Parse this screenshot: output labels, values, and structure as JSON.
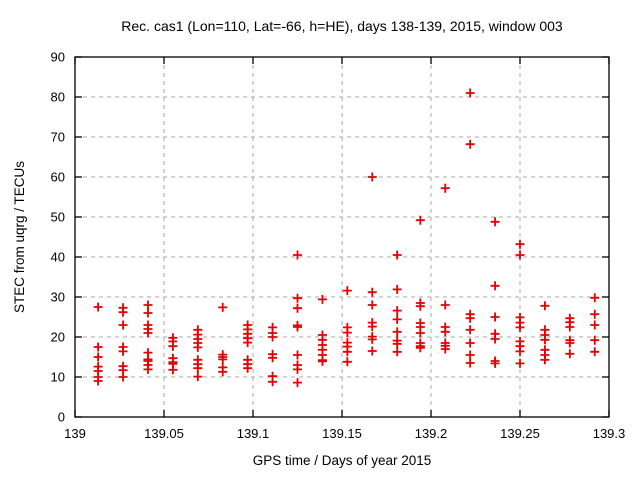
{
  "window": {
    "background_color": "#ffffff"
  },
  "chart_data": {
    "type": "scatter",
    "title": "Rec. cas1 (Lon=110, Lat=-66, h=HE), days 138-139, 2015, window 003",
    "xlabel": "GPS time / Days of year 2015",
    "ylabel": "STEC from uqrg / TECUs",
    "xlim": [
      139,
      139.3
    ],
    "ylim": [
      0,
      90
    ],
    "xticks": [
      {
        "v": 139,
        "label": "139"
      },
      {
        "v": 139.05,
        "label": "139.05"
      },
      {
        "v": 139.1,
        "label": "139.1"
      },
      {
        "v": 139.15,
        "label": "139.15"
      },
      {
        "v": 139.2,
        "label": "139.2"
      },
      {
        "v": 139.25,
        "label": "139.25"
      },
      {
        "v": 139.3,
        "label": "139.3"
      }
    ],
    "yticks": [
      {
        "v": 0,
        "label": "0"
      },
      {
        "v": 10,
        "label": "10"
      },
      {
        "v": 20,
        "label": "20"
      },
      {
        "v": 30,
        "label": "30"
      },
      {
        "v": 40,
        "label": "40"
      },
      {
        "v": 50,
        "label": "50"
      },
      {
        "v": 60,
        "label": "60"
      },
      {
        "v": 70,
        "label": "70"
      },
      {
        "v": 80,
        "label": "80"
      },
      {
        "v": 90,
        "label": "90"
      }
    ],
    "grid": true,
    "legend": "none",
    "marker": {
      "shape": "plus",
      "size": 9,
      "stroke_width": 1.8
    },
    "colors": {
      "marker": "#e60000",
      "grid": "#a9a9a9",
      "border": "#000000",
      "text": "#000000"
    },
    "series": [
      {
        "name": "STEC",
        "points": [
          [
            139.013,
            27.5
          ],
          [
            139.013,
            17.5
          ],
          [
            139.013,
            15.0
          ],
          [
            139.013,
            12.6
          ],
          [
            139.013,
            11.5
          ],
          [
            139.013,
            10.0
          ],
          [
            139.013,
            9.0
          ],
          [
            139.027,
            27.3
          ],
          [
            139.027,
            26.2
          ],
          [
            139.027,
            23.0
          ],
          [
            139.027,
            17.5
          ],
          [
            139.027,
            16.4
          ],
          [
            139.027,
            12.7
          ],
          [
            139.027,
            11.7
          ],
          [
            139.027,
            10.0
          ],
          [
            139.041,
            28.0
          ],
          [
            139.041,
            26.0
          ],
          [
            139.041,
            23.0
          ],
          [
            139.041,
            22.0
          ],
          [
            139.041,
            21.0
          ],
          [
            139.041,
            16.1
          ],
          [
            139.041,
            14.4
          ],
          [
            139.041,
            14.0
          ],
          [
            139.041,
            13.0
          ],
          [
            139.041,
            11.9
          ],
          [
            139.055,
            19.8
          ],
          [
            139.055,
            18.9
          ],
          [
            139.055,
            17.7
          ],
          [
            139.055,
            14.7
          ],
          [
            139.055,
            13.7
          ],
          [
            139.055,
            13.3
          ],
          [
            139.055,
            11.8
          ],
          [
            139.069,
            21.8
          ],
          [
            139.069,
            20.6
          ],
          [
            139.069,
            19.5
          ],
          [
            139.069,
            18.5
          ],
          [
            139.069,
            17.4
          ],
          [
            139.069,
            14.3
          ],
          [
            139.069,
            13.2
          ],
          [
            139.069,
            12.2
          ],
          [
            139.069,
            10.1
          ],
          [
            139.083,
            27.4
          ],
          [
            139.083,
            15.6
          ],
          [
            139.083,
            15.0
          ],
          [
            139.083,
            14.4
          ],
          [
            139.083,
            12.4
          ],
          [
            139.083,
            11.3
          ],
          [
            139.097,
            23.0
          ],
          [
            139.097,
            21.9
          ],
          [
            139.097,
            20.8
          ],
          [
            139.097,
            19.7
          ],
          [
            139.097,
            18.6
          ],
          [
            139.097,
            14.3
          ],
          [
            139.097,
            13.2
          ],
          [
            139.097,
            12.2
          ],
          [
            139.111,
            22.4
          ],
          [
            139.111,
            21.0
          ],
          [
            139.111,
            20.0
          ],
          [
            139.111,
            15.7
          ],
          [
            139.111,
            14.8
          ],
          [
            139.111,
            10.2
          ],
          [
            139.111,
            8.8
          ],
          [
            139.125,
            40.5
          ],
          [
            139.125,
            29.7
          ],
          [
            139.125,
            27.2
          ],
          [
            139.125,
            22.9
          ],
          [
            139.125,
            22.5
          ],
          [
            139.125,
            15.5
          ],
          [
            139.125,
            13.0
          ],
          [
            139.125,
            11.9
          ],
          [
            139.125,
            8.6
          ],
          [
            139.139,
            29.4
          ],
          [
            139.139,
            20.5
          ],
          [
            139.139,
            19.3
          ],
          [
            139.139,
            18.0
          ],
          [
            139.139,
            16.8
          ],
          [
            139.139,
            15.5
          ],
          [
            139.139,
            14.2
          ],
          [
            139.139,
            13.9
          ],
          [
            139.153,
            31.6
          ],
          [
            139.153,
            22.4
          ],
          [
            139.153,
            21.1
          ],
          [
            139.153,
            18.6
          ],
          [
            139.153,
            17.6
          ],
          [
            139.153,
            16.3
          ],
          [
            139.153,
            13.8
          ],
          [
            139.167,
            60.0
          ],
          [
            139.167,
            31.2
          ],
          [
            139.167,
            28.0
          ],
          [
            139.167,
            23.6
          ],
          [
            139.167,
            22.6
          ],
          [
            139.167,
            20.1
          ],
          [
            139.167,
            19.4
          ],
          [
            139.167,
            16.5
          ],
          [
            139.181,
            40.5
          ],
          [
            139.181,
            31.9
          ],
          [
            139.181,
            26.6
          ],
          [
            139.181,
            24.4
          ],
          [
            139.181,
            21.3
          ],
          [
            139.181,
            19.1
          ],
          [
            139.181,
            18.3
          ],
          [
            139.181,
            16.3
          ],
          [
            139.194,
            49.2
          ],
          [
            139.194,
            28.5
          ],
          [
            139.194,
            27.7
          ],
          [
            139.194,
            23.5
          ],
          [
            139.194,
            22.5
          ],
          [
            139.194,
            21.0
          ],
          [
            139.194,
            18.5
          ],
          [
            139.194,
            17.7
          ],
          [
            139.194,
            17.3
          ],
          [
            139.208,
            57.2
          ],
          [
            139.208,
            28.0
          ],
          [
            139.208,
            22.5
          ],
          [
            139.208,
            21.3
          ],
          [
            139.208,
            18.5
          ],
          [
            139.208,
            17.8
          ],
          [
            139.208,
            17.0
          ],
          [
            139.222,
            81.0
          ],
          [
            139.222,
            68.2
          ],
          [
            139.222,
            25.7
          ],
          [
            139.222,
            24.7
          ],
          [
            139.222,
            21.8
          ],
          [
            139.222,
            18.5
          ],
          [
            139.222,
            15.5
          ],
          [
            139.222,
            13.5
          ],
          [
            139.236,
            48.8
          ],
          [
            139.236,
            32.8
          ],
          [
            139.236,
            25.0
          ],
          [
            139.236,
            20.8
          ],
          [
            139.236,
            19.5
          ],
          [
            139.236,
            14.0
          ],
          [
            139.236,
            13.4
          ],
          [
            139.25,
            43.2
          ],
          [
            139.25,
            40.5
          ],
          [
            139.25,
            24.9
          ],
          [
            139.25,
            23.6
          ],
          [
            139.25,
            22.4
          ],
          [
            139.25,
            18.9
          ],
          [
            139.25,
            17.7
          ],
          [
            139.25,
            16.4
          ],
          [
            139.25,
            13.4
          ],
          [
            139.264,
            27.8
          ],
          [
            139.264,
            21.8
          ],
          [
            139.264,
            20.5
          ],
          [
            139.264,
            19.3
          ],
          [
            139.264,
            16.8
          ],
          [
            139.264,
            15.5
          ],
          [
            139.264,
            14.3
          ],
          [
            139.278,
            24.7
          ],
          [
            139.278,
            23.7
          ],
          [
            139.278,
            22.5
          ],
          [
            139.278,
            19.2
          ],
          [
            139.278,
            18.5
          ],
          [
            139.278,
            15.8
          ],
          [
            139.292,
            29.8
          ],
          [
            139.292,
            25.7
          ],
          [
            139.292,
            23.0
          ],
          [
            139.292,
            19.2
          ],
          [
            139.292,
            16.3
          ]
        ]
      }
    ]
  }
}
